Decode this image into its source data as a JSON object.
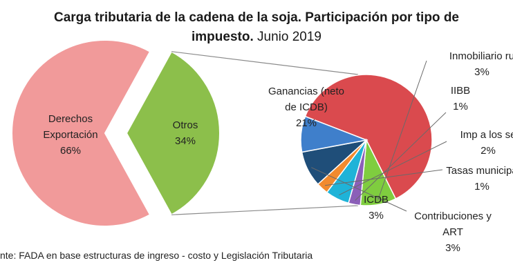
{
  "title": {
    "line1": "Carga tributaria de la cadena de la soja. Participación por tipo de",
    "line2_bold": "impuesto.",
    "line2_rest": " Junio 2019"
  },
  "source": "nte:  FADA en base estructuras de ingreso - costo y Legislación Tributaria",
  "colors": {
    "derechos": "#F19A9A",
    "otros": "#8CBF4B",
    "ganancias": "#DA4A4E",
    "inmobiliario": "#7FCD3F",
    "iibb": "#8B5FB8",
    "imp_servicios": "#1FB3D8",
    "tasas": "#F28A2E",
    "contribuciones": "#1F4E79",
    "icdb": "#3F7FCB"
  },
  "chart_data": [
    {
      "type": "pie",
      "title": "Carga tributaria de la cadena de la soja. Participación por tipo de impuesto. Junio 2019",
      "slices": [
        {
          "key": "derechos",
          "label_lines": [
            "Derechos",
            "Exportación",
            "66%"
          ],
          "value": 66
        },
        {
          "key": "otros",
          "label_lines": [
            "Otros",
            "34%"
          ],
          "value": 34
        }
      ]
    },
    {
      "type": "pie",
      "slices": [
        {
          "key": "ganancias",
          "label_lines": [
            "Ganancias (neto",
            "de ICDB)",
            "21%"
          ],
          "value": 21
        },
        {
          "key": "inmobiliario",
          "label_lines": [
            "Inmobiliario  ru",
            "3%"
          ],
          "value": 3
        },
        {
          "key": "iibb",
          "label_lines": [
            "IIBB",
            "1%"
          ],
          "value": 1
        },
        {
          "key": "imp_servicios",
          "label_lines": [
            "Imp a los se",
            "2%"
          ],
          "value": 2
        },
        {
          "key": "tasas",
          "label_lines": [
            "Tasas municipa",
            "1%"
          ],
          "value": 1
        },
        {
          "key": "contribuciones",
          "label_lines": [
            "Contribuciones  y",
            "ART",
            "3%"
          ],
          "value": 3
        },
        {
          "key": "icdb",
          "label_lines": [
            "ICDB",
            "3%"
          ],
          "value": 3
        }
      ]
    }
  ]
}
